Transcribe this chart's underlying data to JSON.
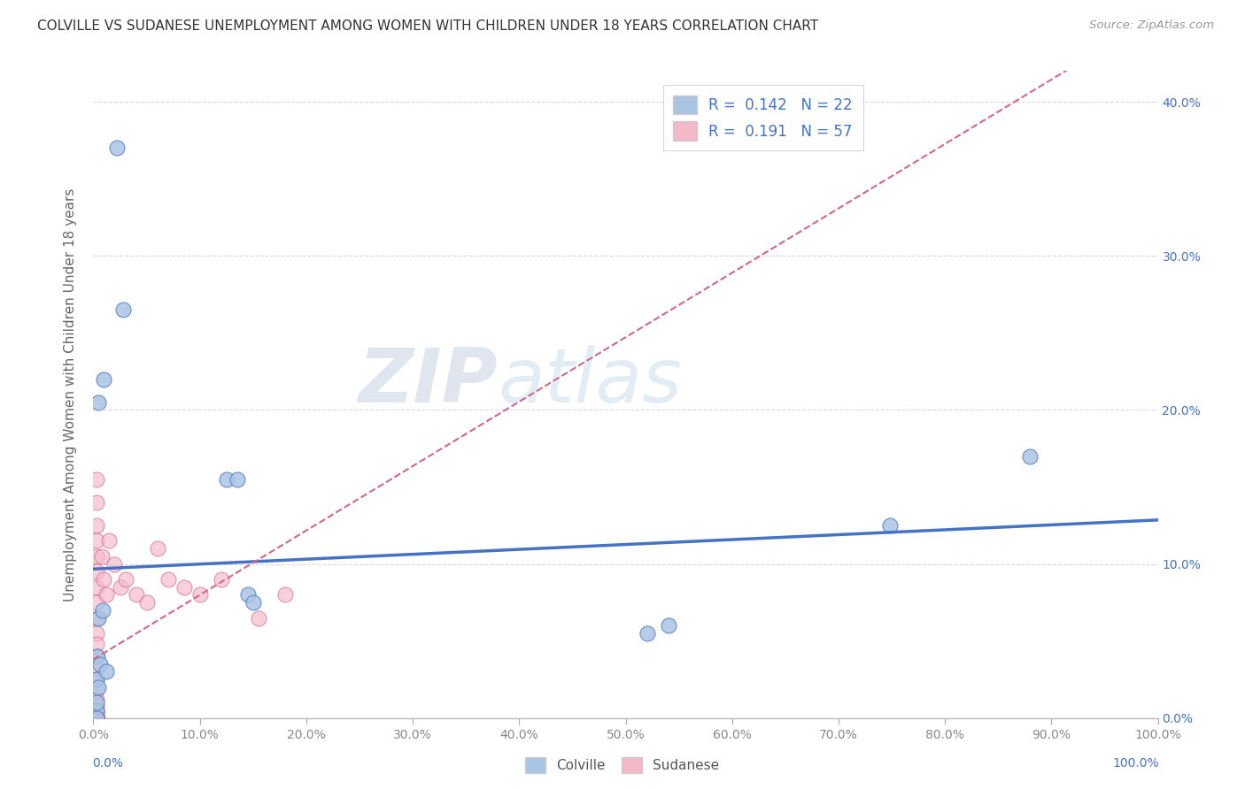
{
  "title": "COLVILLE VS SUDANESE UNEMPLOYMENT AMONG WOMEN WITH CHILDREN UNDER 18 YEARS CORRELATION CHART",
  "source": "Source: ZipAtlas.com",
  "ylabel": "Unemployment Among Women with Children Under 18 years",
  "xlim": [
    0,
    1.0
  ],
  "ylim": [
    0,
    0.42
  ],
  "xticks": [
    0.0,
    0.1,
    0.2,
    0.3,
    0.4,
    0.5,
    0.6,
    0.7,
    0.8,
    0.9,
    1.0
  ],
  "yticks": [
    0.0,
    0.1,
    0.2,
    0.3,
    0.4
  ],
  "colville_fill": "#aac4e4",
  "colville_edge": "#5580c0",
  "sudanese_fill": "#f5b8c8",
  "sudanese_edge": "#d06888",
  "colville_line_color": "#4472c4",
  "sudanese_line_color": "#d06888",
  "legend_text_color": "#4472c4",
  "tick_color": "#4472c4",
  "grid_color": "#d8d8d8",
  "title_color": "#333333",
  "source_color": "#999999",
  "ylabel_color": "#666666",
  "xtick_color": "#888888",
  "watermark_color": "#c8d8ec",
  "watermark": "ZIPatlas",
  "legend_colville_label": "R =  0.142   N = 22",
  "legend_sudanese_label": "R =  0.191   N = 57",
  "colville_legend_label": "Colville",
  "sudanese_legend_label": "Sudanese",
  "colville_x": [
    0.022,
    0.028,
    0.01,
    0.005,
    0.005,
    0.003,
    0.125,
    0.135,
    0.52,
    0.54,
    0.748,
    0.88,
    0.004,
    0.006,
    0.012,
    0.009,
    0.003,
    0.005,
    0.145,
    0.15,
    0.003,
    0.003
  ],
  "colville_y": [
    0.37,
    0.265,
    0.22,
    0.205,
    0.065,
    0.025,
    0.155,
    0.155,
    0.055,
    0.06,
    0.125,
    0.17,
    0.04,
    0.035,
    0.03,
    0.07,
    0.005,
    0.02,
    0.08,
    0.075,
    0.0,
    0.01
  ],
  "sudanese_x": [
    0.003,
    0.003,
    0.003,
    0.003,
    0.003,
    0.003,
    0.003,
    0.003,
    0.003,
    0.003,
    0.003,
    0.003,
    0.003,
    0.003,
    0.003,
    0.003,
    0.003,
    0.003,
    0.003,
    0.003,
    0.003,
    0.003,
    0.003,
    0.003,
    0.003,
    0.003,
    0.003,
    0.003,
    0.003,
    0.003,
    0.003,
    0.003,
    0.003,
    0.003,
    0.003,
    0.003,
    0.003,
    0.003,
    0.003,
    0.003,
    0.003,
    0.008,
    0.01,
    0.012,
    0.015,
    0.02,
    0.025,
    0.03,
    0.04,
    0.05,
    0.06,
    0.07,
    0.085,
    0.1,
    0.12,
    0.155,
    0.18
  ],
  "sudanese_y": [
    0.155,
    0.14,
    0.125,
    0.115,
    0.105,
    0.095,
    0.085,
    0.075,
    0.065,
    0.055,
    0.048,
    0.04,
    0.032,
    0.025,
    0.018,
    0.012,
    0.008,
    0.005,
    0.003,
    0.002,
    0.001,
    0.0,
    0.0,
    0.0,
    0.0,
    0.0,
    0.0,
    0.0,
    0.0,
    0.0,
    0.0,
    0.0,
    0.0,
    0.0,
    0.0,
    0.0,
    0.0,
    0.0,
    0.0,
    0.0,
    0.0,
    0.105,
    0.09,
    0.08,
    0.115,
    0.1,
    0.085,
    0.09,
    0.08,
    0.075,
    0.11,
    0.09,
    0.085,
    0.08,
    0.09,
    0.065,
    0.08
  ]
}
